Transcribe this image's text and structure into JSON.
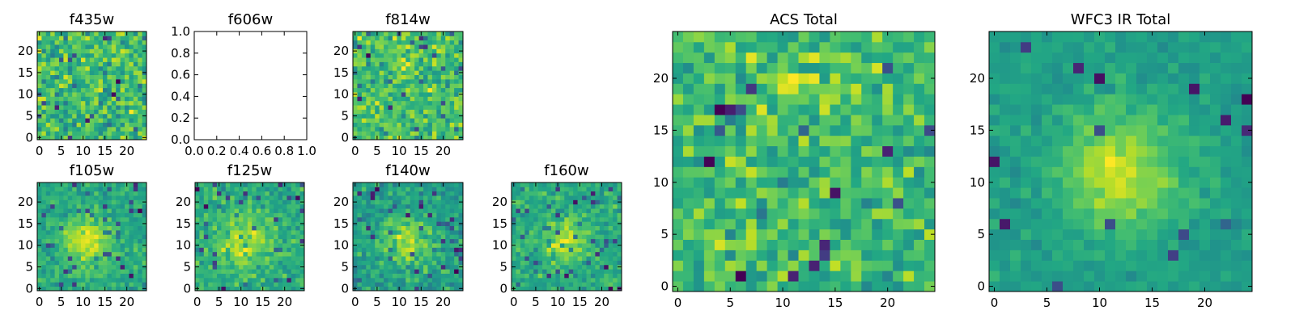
{
  "figure": {
    "colormap": "viridis",
    "frame_color": "#000000",
    "background": "#ffffff"
  },
  "chart_data": [
    {
      "type": "heatmap",
      "title": "f435w",
      "image": true,
      "shape": [
        25,
        25
      ],
      "xlim": [
        -0.5,
        24.5
      ],
      "ylim": [
        -0.5,
        24.5
      ],
      "xticks": [
        0,
        5,
        10,
        15,
        20
      ],
      "yticks": [
        0,
        5,
        10,
        15,
        20
      ],
      "xticklabels": [
        "0",
        "5",
        "10",
        "15",
        "20"
      ],
      "yticklabels": [
        "0",
        "5",
        "10",
        "15",
        "20"
      ],
      "seed": 11,
      "source": null,
      "noise": 1.0,
      "dark_fraction": 0.06
    },
    {
      "type": "table",
      "title": "f606w",
      "image": false,
      "empty_axes": true,
      "xlim": [
        0.0,
        1.0
      ],
      "ylim": [
        0.0,
        1.0
      ],
      "xticks": [
        0.0,
        0.2,
        0.4,
        0.6,
        0.8,
        1.0
      ],
      "yticks": [
        0.0,
        0.2,
        0.4,
        0.6,
        0.8,
        1.0
      ],
      "xticklabels": [
        "0.0",
        "0.2",
        "0.4",
        "0.6",
        "0.8",
        "1.0"
      ],
      "yticklabels": [
        "0.0",
        "0.2",
        "0.4",
        "0.6",
        "0.8",
        "1.0"
      ]
    },
    {
      "type": "heatmap",
      "title": "f814w",
      "image": true,
      "shape": [
        25,
        25
      ],
      "xlim": [
        -0.5,
        24.5
      ],
      "ylim": [
        -0.5,
        24.5
      ],
      "xticks": [
        0,
        5,
        10,
        15,
        20
      ],
      "yticks": [
        0,
        5,
        10,
        15,
        20
      ],
      "xticklabels": [
        "0",
        "5",
        "10",
        "15",
        "20"
      ],
      "yticklabels": [
        "0",
        "5",
        "10",
        "15",
        "20"
      ],
      "seed": 23,
      "source": {
        "x": 11,
        "y": 18,
        "sigma": 2.0,
        "amp": 0.6
      },
      "noise": 0.9,
      "dark_fraction": 0.06
    },
    {
      "type": "heatmap",
      "title": "f105w",
      "image": true,
      "shape": [
        25,
        25
      ],
      "xlim": [
        -0.5,
        24.5
      ],
      "ylim": [
        -0.5,
        24.5
      ],
      "xticks": [
        0,
        5,
        10,
        15,
        20
      ],
      "yticks": [
        0,
        5,
        10,
        15,
        20
      ],
      "xticklabels": [
        "0",
        "5",
        "10",
        "15",
        "20"
      ],
      "yticklabels": [
        "0",
        "5",
        "10",
        "15",
        "20"
      ],
      "seed": 37,
      "source": {
        "x": 11,
        "y": 11,
        "sigma": 4.0,
        "amp": 1.3
      },
      "noise": 0.55,
      "dark_fraction": 0.05
    },
    {
      "type": "heatmap",
      "title": "f125w",
      "image": true,
      "shape": [
        25,
        25
      ],
      "xlim": [
        -0.5,
        24.5
      ],
      "ylim": [
        -0.5,
        24.5
      ],
      "xticks": [
        0,
        5,
        10,
        15,
        20
      ],
      "yticks": [
        0,
        5,
        10,
        15,
        20
      ],
      "xticklabels": [
        "0",
        "5",
        "10",
        "15",
        "20"
      ],
      "yticklabels": [
        "0",
        "5",
        "10",
        "15",
        "20"
      ],
      "seed": 41,
      "source": {
        "x": 11,
        "y": 11,
        "sigma": 4.5,
        "amp": 1.1
      },
      "noise": 0.65,
      "dark_fraction": 0.05
    },
    {
      "type": "heatmap",
      "title": "f140w",
      "image": true,
      "shape": [
        25,
        25
      ],
      "xlim": [
        -0.5,
        24.5
      ],
      "ylim": [
        -0.5,
        24.5
      ],
      "xticks": [
        0,
        5,
        10,
        15,
        20
      ],
      "yticks": [
        0,
        5,
        10,
        15,
        20
      ],
      "xticklabels": [
        "0",
        "5",
        "10",
        "15",
        "20"
      ],
      "yticklabels": [
        "0",
        "5",
        "10",
        "15",
        "20"
      ],
      "seed": 53,
      "source": {
        "x": 12,
        "y": 11,
        "sigma": 4.5,
        "amp": 1.1
      },
      "noise": 0.65,
      "dark_fraction": 0.05
    },
    {
      "type": "heatmap",
      "title": "f160w",
      "image": true,
      "shape": [
        25,
        25
      ],
      "xlim": [
        -0.5,
        24.5
      ],
      "ylim": [
        -0.5,
        24.5
      ],
      "xticks": [
        0,
        5,
        10,
        15,
        20
      ],
      "yticks": [
        0,
        5,
        10,
        15,
        20
      ],
      "xticklabels": [
        "0",
        "5",
        "10",
        "15",
        "20"
      ],
      "yticklabels": [
        "0",
        "5",
        "10",
        "15",
        "20"
      ],
      "seed": 67,
      "source": {
        "x": 12,
        "y": 11,
        "sigma": 3.5,
        "amp": 1.3
      },
      "noise": 0.6,
      "dark_fraction": 0.07
    },
    {
      "type": "heatmap",
      "title": "ACS Total",
      "image": true,
      "shape": [
        25,
        25
      ],
      "xlim": [
        -0.5,
        24.5
      ],
      "ylim": [
        -0.5,
        24.5
      ],
      "xticks": [
        0,
        5,
        10,
        15,
        20
      ],
      "yticks": [
        0,
        5,
        10,
        15,
        20
      ],
      "xticklabels": [
        "0",
        "5",
        "10",
        "15",
        "20"
      ],
      "yticklabels": [
        "0",
        "5",
        "10",
        "15",
        "20"
      ],
      "seed": 79,
      "source": {
        "x": 11,
        "y": 19,
        "sigma": 1.8,
        "amp": 0.7
      },
      "noise": 0.8,
      "dark_fraction": 0.035
    },
    {
      "type": "heatmap",
      "title": "WFC3 IR Total",
      "image": true,
      "shape": [
        25,
        25
      ],
      "xlim": [
        -0.5,
        24.5
      ],
      "ylim": [
        -0.5,
        24.5
      ],
      "xticks": [
        0,
        5,
        10,
        15,
        20
      ],
      "yticks": [
        0,
        5,
        10,
        15,
        20
      ],
      "xticklabels": [
        "0",
        "5",
        "10",
        "15",
        "20"
      ],
      "yticklabels": [
        "0",
        "5",
        "10",
        "15",
        "20"
      ],
      "seed": 97,
      "source": {
        "x": 12,
        "y": 11,
        "sigma": 4.0,
        "amp": 1.5
      },
      "noise": 0.35,
      "dark_fraction": 0.025
    }
  ]
}
